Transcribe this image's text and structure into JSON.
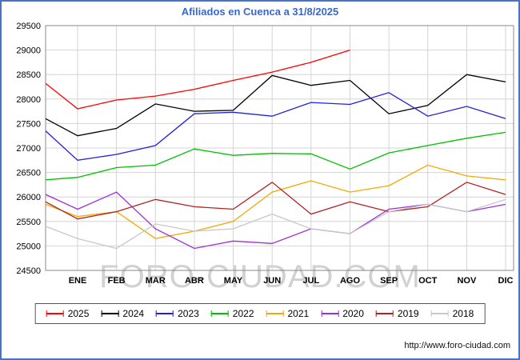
{
  "title": "Afiliados en Cuenca a 31/8/2025",
  "watermark": "FORO-CIUDAD.COM",
  "footer": {
    "url": "http://www.foro-ciudad.com"
  },
  "colors": {
    "frame_border": "#4a73c4",
    "title": "#3a66cc",
    "grid": "#d4d4d4",
    "plot_border": "#888888",
    "tick_text": "#000000"
  },
  "chart_data": {
    "type": "line",
    "title": "Afiliados en Cuenca a 31/8/2025",
    "xlabel": "",
    "ylabel": "",
    "ylim": [
      24500,
      29500
    ],
    "ytick_step": 500,
    "grid": true,
    "legend_position": "bottom",
    "categories": [
      "ENE",
      "FEB",
      "MAR",
      "ABR",
      "MAY",
      "JUN",
      "JUL",
      "AGO",
      "SEP",
      "OCT",
      "NOV",
      "DIC"
    ],
    "series": [
      {
        "name": "2025",
        "color": "#ff0000",
        "start": 28320,
        "values": [
          27800,
          27980,
          28060,
          28200,
          28380,
          28550,
          28750,
          29000
        ]
      },
      {
        "name": "2024",
        "color": "#000000",
        "start": 27600,
        "values": [
          27250,
          27400,
          27900,
          27750,
          27770,
          28480,
          28280,
          28380,
          27700,
          27870,
          28500,
          28350
        ]
      },
      {
        "name": "2023",
        "color": "#2020dd",
        "start": 27350,
        "values": [
          26750,
          26870,
          27050,
          27700,
          27730,
          27650,
          27930,
          27890,
          28130,
          27650,
          27850,
          27600
        ]
      },
      {
        "name": "2022",
        "color": "#00c000",
        "start": 26350,
        "values": [
          26400,
          26600,
          26650,
          26980,
          26850,
          26890,
          26880,
          26570,
          26900,
          27050,
          27200,
          27320
        ]
      },
      {
        "name": "2021",
        "color": "#f5a800",
        "start": 25850,
        "values": [
          25600,
          25700,
          25150,
          25300,
          25500,
          26100,
          26330,
          26100,
          26230,
          26650,
          26430,
          26350
        ]
      },
      {
        "name": "2020",
        "color": "#9b30d9",
        "start": 26050,
        "values": [
          25750,
          26100,
          25350,
          24950,
          25100,
          25050,
          25350,
          25250,
          25750,
          25850,
          25700,
          25850
        ]
      },
      {
        "name": "2019",
        "color": "#b22222",
        "start": 25900,
        "values": [
          25550,
          25700,
          25950,
          25800,
          25750,
          26300,
          25650,
          25900,
          25700,
          25800,
          26300,
          26050
        ]
      },
      {
        "name": "2018",
        "color": "#c8c8c8",
        "start": 25400,
        "values": [
          25150,
          24950,
          25450,
          25300,
          25350,
          25650,
          25350,
          25250,
          25700,
          25850,
          25700,
          25950
        ]
      }
    ]
  }
}
